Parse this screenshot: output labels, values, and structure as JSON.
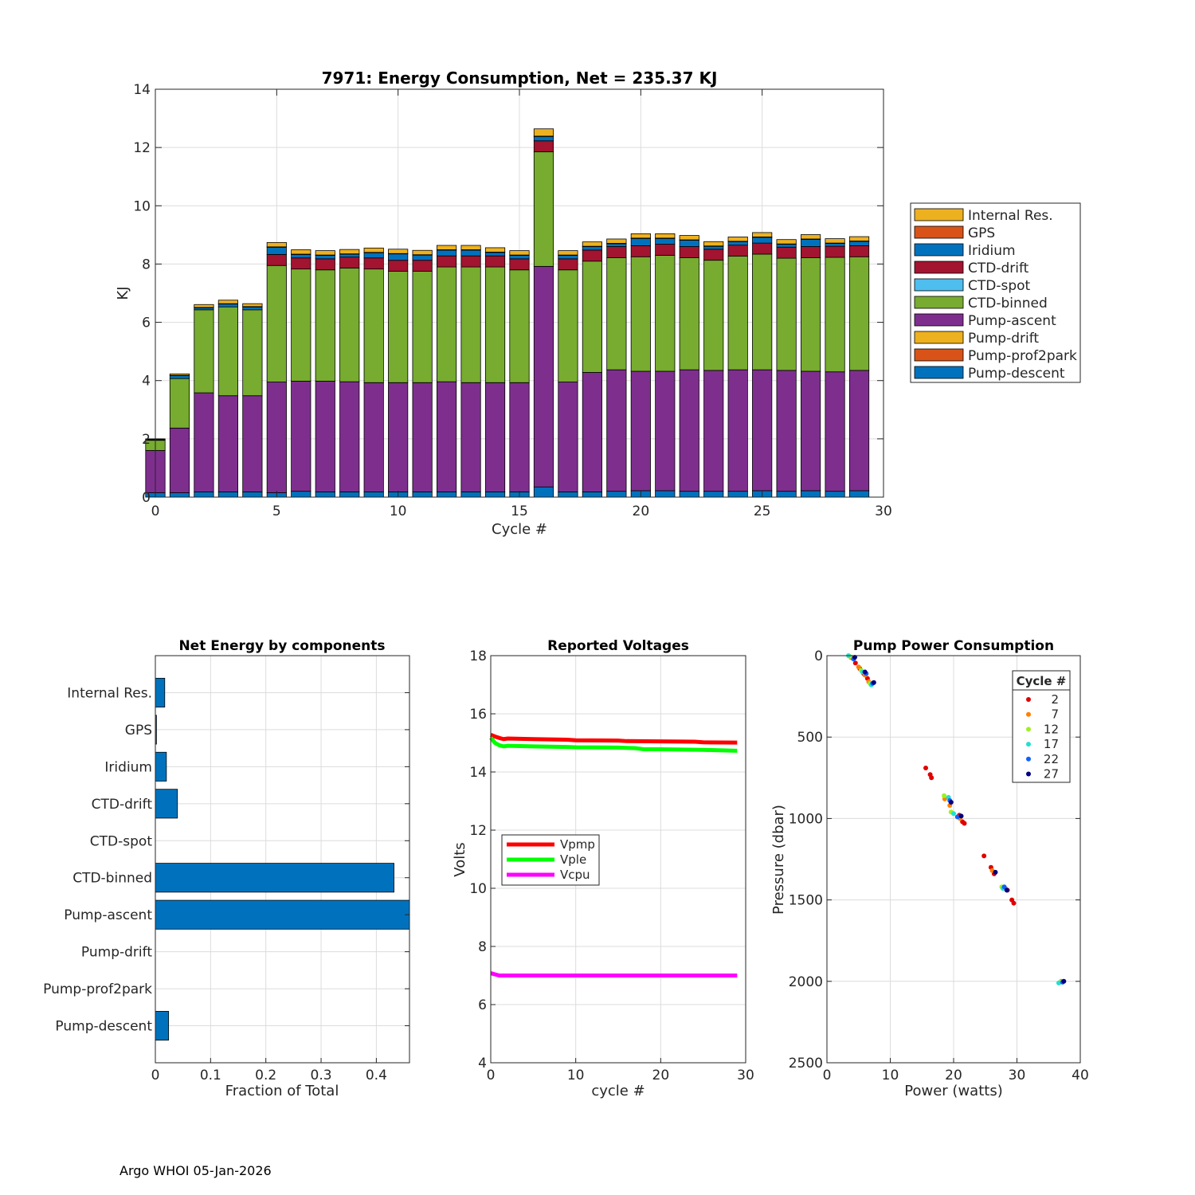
{
  "footer": "Argo WHOI 05-Jan-2026",
  "colors": {
    "internal_res": "#EDB120",
    "gps": "#D95319",
    "iridium": "#0072BD",
    "ctd_drift": "#A2142F",
    "ctd_spot": "#4DBEEE",
    "ctd_binned": "#77AC30",
    "pump_ascent": "#7E2F8E",
    "pump_drift": "#EDB120",
    "pump_prof2park": "#D95319",
    "pump_descent": "#0072BD",
    "vpmp": "#FF0000",
    "vple": "#00FF00",
    "vcpu": "#FF00FF"
  },
  "chart_data": [
    {
      "id": "energy",
      "type": "bar",
      "stacked": true,
      "title": "7971: Energy Consumption,  Net = 235.37 KJ",
      "xlabel": "Cycle #",
      "ylabel": "KJ",
      "xlim": [
        0,
        30
      ],
      "ylim": [
        0,
        14
      ],
      "xticks": [
        0,
        5,
        10,
        15,
        20,
        25,
        30
      ],
      "yticks": [
        0,
        2,
        4,
        6,
        8,
        10,
        12,
        14
      ],
      "grid": true,
      "legend_location": "outside right",
      "categories": [
        0,
        1,
        2,
        3,
        4,
        5,
        6,
        7,
        8,
        9,
        10,
        11,
        12,
        13,
        14,
        15,
        16,
        17,
        18,
        19,
        20,
        21,
        22,
        23,
        24,
        25,
        26,
        27,
        28,
        29
      ],
      "series": [
        {
          "name": "Pump-descent",
          "color_key": "pump_descent",
          "values": [
            0.15,
            0.15,
            0.18,
            0.18,
            0.18,
            0.15,
            0.2,
            0.18,
            0.18,
            0.18,
            0.18,
            0.18,
            0.18,
            0.18,
            0.18,
            0.18,
            0.35,
            0.18,
            0.18,
            0.2,
            0.22,
            0.22,
            0.2,
            0.2,
            0.2,
            0.22,
            0.2,
            0.22,
            0.2,
            0.22
          ]
        },
        {
          "name": "Pump-prof2park",
          "color_key": "pump_prof2park",
          "values": [
            0,
            0,
            0,
            0,
            0,
            0,
            0,
            0,
            0,
            0,
            0,
            0,
            0,
            0,
            0,
            0,
            0,
            0,
            0,
            0,
            0,
            0,
            0,
            0,
            0,
            0,
            0,
            0,
            0,
            0
          ]
        },
        {
          "name": "Pump-drift",
          "color_key": "pump_drift",
          "values": [
            0,
            0,
            0,
            0,
            0,
            0,
            0,
            0,
            0,
            0,
            0,
            0,
            0,
            0,
            0,
            0,
            0,
            0,
            0,
            0,
            0,
            0,
            0,
            0,
            0,
            0,
            0,
            0,
            0,
            0
          ]
        },
        {
          "name": "Pump-ascent",
          "color_key": "pump_ascent",
          "values": [
            1.45,
            2.22,
            3.4,
            3.3,
            3.3,
            3.8,
            3.78,
            3.8,
            3.78,
            3.75,
            3.75,
            3.75,
            3.78,
            3.75,
            3.75,
            3.75,
            7.57,
            3.77,
            4.1,
            4.17,
            4.1,
            4.1,
            4.17,
            4.15,
            4.17,
            4.15,
            4.15,
            4.1,
            4.1,
            4.13
          ]
        },
        {
          "name": "CTD-binned",
          "color_key": "ctd_binned",
          "values": [
            0.35,
            1.7,
            2.85,
            3.05,
            2.95,
            4.0,
            3.85,
            3.82,
            3.9,
            3.9,
            3.82,
            3.82,
            3.94,
            3.97,
            3.97,
            3.87,
            3.93,
            3.85,
            3.82,
            3.85,
            3.93,
            3.98,
            3.85,
            3.78,
            3.9,
            3.97,
            3.85,
            3.9,
            3.93,
            3.9
          ]
        },
        {
          "name": "CTD-spot",
          "color_key": "ctd_spot",
          "values": [
            0,
            0,
            0,
            0,
            0,
            0,
            0,
            0,
            0,
            0,
            0,
            0,
            0,
            0,
            0,
            0,
            0,
            0,
            0,
            0,
            0,
            0,
            0,
            0,
            0,
            0,
            0,
            0,
            0,
            0
          ]
        },
        {
          "name": "CTD-drift",
          "color_key": "ctd_drift",
          "values": [
            0,
            0,
            0,
            0,
            0,
            0.38,
            0.38,
            0.38,
            0.38,
            0.38,
            0.38,
            0.38,
            0.38,
            0.38,
            0.38,
            0.38,
            0.38,
            0.38,
            0.38,
            0.38,
            0.38,
            0.38,
            0.38,
            0.38,
            0.38,
            0.38,
            0.38,
            0.38,
            0.38,
            0.38
          ]
        },
        {
          "name": "Iridium",
          "color_key": "iridium",
          "values": [
            0.02,
            0.1,
            0.07,
            0.1,
            0.1,
            0.25,
            0.12,
            0.12,
            0.1,
            0.18,
            0.22,
            0.18,
            0.2,
            0.2,
            0.12,
            0.12,
            0.15,
            0.12,
            0.12,
            0.1,
            0.25,
            0.2,
            0.22,
            0.1,
            0.12,
            0.2,
            0.1,
            0.25,
            0.1,
            0.15
          ]
        },
        {
          "name": "GPS",
          "color_key": "gps",
          "values": [
            0.01,
            0.01,
            0.01,
            0.01,
            0.01,
            0.01,
            0.01,
            0.01,
            0.01,
            0.01,
            0.01,
            0.01,
            0.01,
            0.01,
            0.01,
            0.01,
            0.01,
            0.01,
            0.01,
            0.01,
            0.01,
            0.01,
            0.01,
            0.01,
            0.01,
            0.01,
            0.01,
            0.01,
            0.01,
            0.01
          ]
        },
        {
          "name": "Internal Res.",
          "color_key": "internal_res",
          "values": [
            0.02,
            0.05,
            0.1,
            0.12,
            0.1,
            0.15,
            0.15,
            0.15,
            0.15,
            0.15,
            0.15,
            0.15,
            0.15,
            0.15,
            0.15,
            0.15,
            0.25,
            0.15,
            0.15,
            0.15,
            0.15,
            0.15,
            0.15,
            0.15,
            0.15,
            0.15,
            0.15,
            0.15,
            0.15,
            0.15
          ]
        }
      ],
      "legend_order": [
        "Internal Res.",
        "GPS",
        "Iridium",
        "CTD-drift",
        "CTD-spot",
        "CTD-binned",
        "Pump-ascent",
        "Pump-drift",
        "Pump-prof2park",
        "Pump-descent"
      ]
    },
    {
      "id": "fraction",
      "type": "bar",
      "orientation": "horizontal",
      "title": "Net Energy by components",
      "xlabel": "Fraction of Total",
      "ylabel": "",
      "xlim": [
        0,
        0.46
      ],
      "xticks": [
        0,
        0.1,
        0.2,
        0.3,
        0.4
      ],
      "xtick_labels": [
        "0",
        "0.1",
        "0.2",
        "0.3",
        "0.4"
      ],
      "grid": true,
      "categories": [
        "Internal Res.",
        "GPS",
        "Iridium",
        "CTD-drift",
        "CTD-spot",
        "CTD-binned",
        "Pump-ascent",
        "Pump-drift",
        "Pump-prof2park",
        "Pump-descent"
      ],
      "values": [
        0.017,
        0.002,
        0.02,
        0.04,
        0,
        0.432,
        0.47,
        0,
        0,
        0.024
      ],
      "color": "#0072BD"
    },
    {
      "id": "voltages",
      "type": "line",
      "title": "Reported Voltages",
      "xlabel": "cycle #",
      "ylabel": "Volts",
      "xlim": [
        0,
        30
      ],
      "ylim": [
        4,
        18
      ],
      "xticks": [
        0,
        10,
        20,
        30
      ],
      "yticks": [
        4,
        6,
        8,
        10,
        12,
        14,
        16,
        18
      ],
      "grid": true,
      "legend_location": "middle-left",
      "series": [
        {
          "name": "Vpmp",
          "color_key": "vpmp",
          "x": [
            0,
            0.5,
            1,
            1.5,
            2,
            5,
            9,
            10,
            15,
            16,
            20,
            24,
            25,
            29
          ],
          "y": [
            15.28,
            15.22,
            15.17,
            15.13,
            15.15,
            15.13,
            15.11,
            15.09,
            15.08,
            15.06,
            15.05,
            15.04,
            15.02,
            15.01
          ]
        },
        {
          "name": "Vple",
          "color_key": "vple",
          "x": [
            0,
            0.5,
            1,
            1.5,
            2,
            5,
            9,
            10,
            15,
            17,
            18,
            20,
            25,
            29
          ],
          "y": [
            15.18,
            15.0,
            14.92,
            14.88,
            14.9,
            14.88,
            14.86,
            14.85,
            14.84,
            14.82,
            14.78,
            14.78,
            14.76,
            14.73
          ]
        },
        {
          "name": "Vcpu",
          "color_key": "vcpu",
          "x": [
            0,
            0.5,
            1,
            29
          ],
          "y": [
            7.08,
            7.04,
            7.0,
            7.0
          ]
        }
      ]
    },
    {
      "id": "pump_power",
      "type": "scatter",
      "title": "Pump Power Consumption",
      "xlabel": "Power (watts)",
      "ylabel": "Pressure (dbar)",
      "xlim": [
        0,
        40
      ],
      "ylim": [
        0,
        2500
      ],
      "y_reversed": true,
      "xticks": [
        0,
        10,
        20,
        30,
        40
      ],
      "yticks": [
        0,
        500,
        1000,
        1500,
        2000,
        2500
      ],
      "grid": true,
      "legend_title": "Cycle #",
      "legend_location": "top-right",
      "series": [
        {
          "name": "2",
          "color": "#E00000",
          "points": [
            [
              3.8,
              10
            ],
            [
              4.5,
              45
            ],
            [
              5.2,
              80
            ],
            [
              5.8,
              110
            ],
            [
              6.4,
              140
            ],
            [
              15.6,
              690
            ],
            [
              16.3,
              730
            ],
            [
              16.5,
              750
            ],
            [
              20.9,
              980
            ],
            [
              21.4,
              1020
            ],
            [
              21.7,
              1030
            ],
            [
              24.8,
              1230
            ],
            [
              25.9,
              1300
            ],
            [
              26.4,
              1340
            ],
            [
              28.5,
              1440
            ],
            [
              29.2,
              1500
            ],
            [
              29.5,
              1520
            ]
          ]
        },
        {
          "name": "7",
          "color": "#FF7F00",
          "points": [
            [
              4.0,
              15
            ],
            [
              5.0,
              70
            ],
            [
              6.0,
              120
            ],
            [
              6.6,
              160
            ],
            [
              18.6,
              880
            ],
            [
              19.4,
              920
            ],
            [
              21.0,
              1000
            ],
            [
              26.1,
              1320
            ],
            [
              28.2,
              1430
            ],
            [
              37.0,
              2000
            ]
          ]
        },
        {
          "name": "12",
          "color": "#A0F020",
          "points": [
            [
              3.6,
              5
            ],
            [
              5.4,
              90
            ],
            [
              6.8,
              170
            ],
            [
              18.5,
              860
            ],
            [
              19.6,
              960
            ],
            [
              27.6,
              1420
            ],
            [
              36.8,
              2005
            ]
          ]
        },
        {
          "name": "17",
          "color": "#20E0D0",
          "points": [
            [
              3.4,
              0
            ],
            [
              5.6,
              100
            ],
            [
              7.0,
              180
            ],
            [
              19.2,
              870
            ],
            [
              20.0,
              970
            ],
            [
              27.8,
              1430
            ],
            [
              36.6,
              2010
            ]
          ]
        },
        {
          "name": "22",
          "color": "#1060FF",
          "points": [
            [
              4.2,
              20
            ],
            [
              6.2,
              110
            ],
            [
              7.2,
              170
            ],
            [
              19.4,
              890
            ],
            [
              20.6,
              990
            ],
            [
              28.0,
              1420
            ],
            [
              37.2,
              2005
            ]
          ]
        },
        {
          "name": "27",
          "color": "#000080",
          "points": [
            [
              4.4,
              10
            ],
            [
              6.0,
              100
            ],
            [
              7.4,
              165
            ],
            [
              19.6,
              900
            ],
            [
              21.2,
              985
            ],
            [
              26.6,
              1330
            ],
            [
              28.4,
              1440
            ],
            [
              37.4,
              2000
            ]
          ]
        }
      ]
    }
  ]
}
